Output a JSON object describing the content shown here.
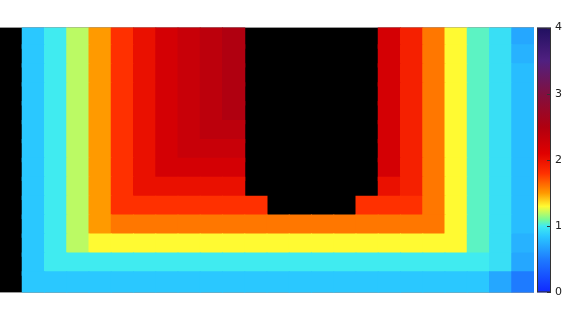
{
  "chart_data": {
    "type": "heatmap",
    "cells": [
      [
        null,
        0.85,
        1.0,
        1.2,
        1.5,
        1.8,
        2.0,
        2.2,
        2.3,
        2.4,
        2.5,
        null,
        null,
        null,
        null,
        null,
        null,
        2.2,
        1.9,
        1.6,
        1.3,
        1.05,
        0.95,
        0.7
      ],
      [
        null,
        0.85,
        1.0,
        1.2,
        1.5,
        1.8,
        2.0,
        2.2,
        2.3,
        2.4,
        2.5,
        null,
        null,
        null,
        null,
        null,
        null,
        2.2,
        1.9,
        1.6,
        1.3,
        1.05,
        0.95,
        0.75
      ],
      [
        null,
        0.85,
        1.0,
        1.2,
        1.5,
        1.8,
        2.0,
        2.2,
        2.3,
        2.4,
        2.5,
        null,
        null,
        null,
        null,
        null,
        null,
        2.2,
        1.9,
        1.6,
        1.3,
        1.05,
        0.95,
        0.8
      ],
      [
        null,
        0.85,
        1.0,
        1.2,
        1.5,
        1.8,
        2.0,
        2.2,
        2.3,
        2.4,
        2.5,
        null,
        null,
        null,
        null,
        null,
        null,
        2.2,
        1.9,
        1.6,
        1.3,
        1.05,
        0.95,
        0.8
      ],
      [
        null,
        0.85,
        1.0,
        1.2,
        1.5,
        1.8,
        2.0,
        2.2,
        2.3,
        2.4,
        2.5,
        null,
        null,
        null,
        null,
        null,
        null,
        2.2,
        1.9,
        1.6,
        1.3,
        1.05,
        0.95,
        0.8
      ],
      [
        null,
        0.85,
        1.0,
        1.2,
        1.5,
        1.8,
        2.0,
        2.2,
        2.3,
        2.4,
        2.4,
        null,
        null,
        null,
        null,
        null,
        null,
        2.2,
        1.9,
        1.6,
        1.3,
        1.05,
        0.95,
        0.8
      ],
      [
        null,
        0.85,
        1.0,
        1.2,
        1.5,
        1.8,
        2.0,
        2.2,
        2.3,
        2.3,
        2.3,
        null,
        null,
        null,
        null,
        null,
        null,
        2.2,
        1.9,
        1.6,
        1.3,
        1.05,
        0.95,
        0.8
      ],
      [
        null,
        0.85,
        1.0,
        1.2,
        1.5,
        1.8,
        2.0,
        2.2,
        2.2,
        2.2,
        2.2,
        null,
        null,
        null,
        null,
        null,
        null,
        2.2,
        1.9,
        1.6,
        1.3,
        1.05,
        0.95,
        0.8
      ],
      [
        null,
        0.85,
        1.0,
        1.2,
        1.5,
        1.8,
        2.0,
        2.0,
        2.0,
        2.0,
        2.0,
        null,
        null,
        null,
        null,
        null,
        null,
        2.0,
        1.9,
        1.6,
        1.3,
        1.05,
        0.95,
        0.8
      ],
      [
        null,
        0.85,
        1.0,
        1.2,
        1.5,
        1.8,
        1.8,
        1.8,
        1.8,
        1.8,
        1.8,
        1.8,
        null,
        null,
        null,
        null,
        1.8,
        1.8,
        1.8,
        1.6,
        1.3,
        1.05,
        0.95,
        0.8
      ],
      [
        null,
        0.85,
        1.0,
        1.2,
        1.5,
        1.6,
        1.6,
        1.6,
        1.6,
        1.6,
        1.6,
        1.6,
        1.6,
        1.6,
        1.6,
        1.6,
        1.6,
        1.6,
        1.6,
        1.6,
        1.3,
        1.05,
        0.95,
        0.8
      ],
      [
        null,
        0.85,
        1.0,
        1.2,
        1.3,
        1.3,
        1.3,
        1.3,
        1.3,
        1.3,
        1.3,
        1.3,
        1.3,
        1.3,
        1.3,
        1.3,
        1.3,
        1.3,
        1.3,
        1.3,
        1.3,
        1.05,
        0.95,
        0.75
      ],
      [
        null,
        0.85,
        1.0,
        1.0,
        1.0,
        1.0,
        1.0,
        1.0,
        1.0,
        1.0,
        1.0,
        1.0,
        1.0,
        1.0,
        1.0,
        1.0,
        1.0,
        1.0,
        1.0,
        1.0,
        1.0,
        1.0,
        0.95,
        0.7
      ],
      [
        null,
        0.85,
        0.85,
        0.85,
        0.85,
        0.85,
        0.85,
        0.85,
        0.85,
        0.85,
        0.85,
        0.85,
        0.85,
        0.85,
        0.85,
        0.85,
        0.85,
        0.85,
        0.85,
        0.85,
        0.85,
        0.85,
        0.7,
        0.5
      ]
    ],
    "colorbar": {
      "range": [
        0,
        4
      ],
      "ticks": [
        0,
        1,
        2,
        3,
        4
      ]
    },
    "tick_labels": false
  }
}
